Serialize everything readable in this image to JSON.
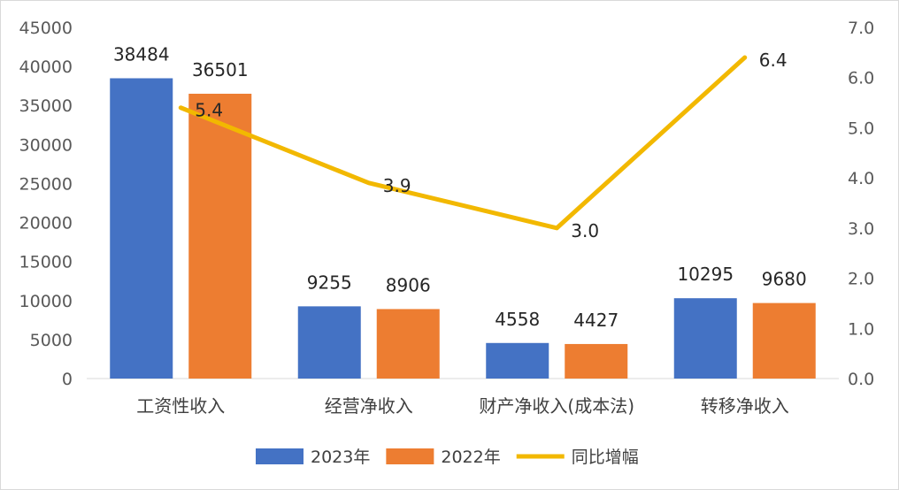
{
  "chart_data": {
    "type": "bar",
    "categories": [
      "工资性收入",
      "经营净收入",
      "财产净收入(成本法)",
      "转移净收入"
    ],
    "series": [
      {
        "name": "2023年",
        "type": "bar",
        "axis": "left",
        "color": "#4472C4",
        "values": [
          38484,
          9255,
          4558,
          10295
        ]
      },
      {
        "name": "2022年",
        "type": "bar",
        "axis": "left",
        "color": "#ED7D31",
        "values": [
          36501,
          8906,
          4427,
          9680
        ]
      },
      {
        "name": "同比增幅",
        "type": "line",
        "axis": "right",
        "color": "#F2B800",
        "values": [
          5.4,
          3.9,
          3.0,
          6.4
        ],
        "labels": [
          "5.4",
          "3.9",
          "3.0",
          "6.4"
        ]
      }
    ],
    "y_left": {
      "ylim": [
        0,
        45000
      ],
      "ticks": [
        "0",
        "5000",
        "10000",
        "15000",
        "20000",
        "25000",
        "30000",
        "35000",
        "40000",
        "45000"
      ]
    },
    "y_right": {
      "ylim": [
        0,
        7.0
      ],
      "ticks": [
        "0.0",
        "1.0",
        "2.0",
        "3.0",
        "4.0",
        "5.0",
        "6.0",
        "7.0"
      ]
    },
    "grid": false,
    "legend_position": "bottom"
  }
}
